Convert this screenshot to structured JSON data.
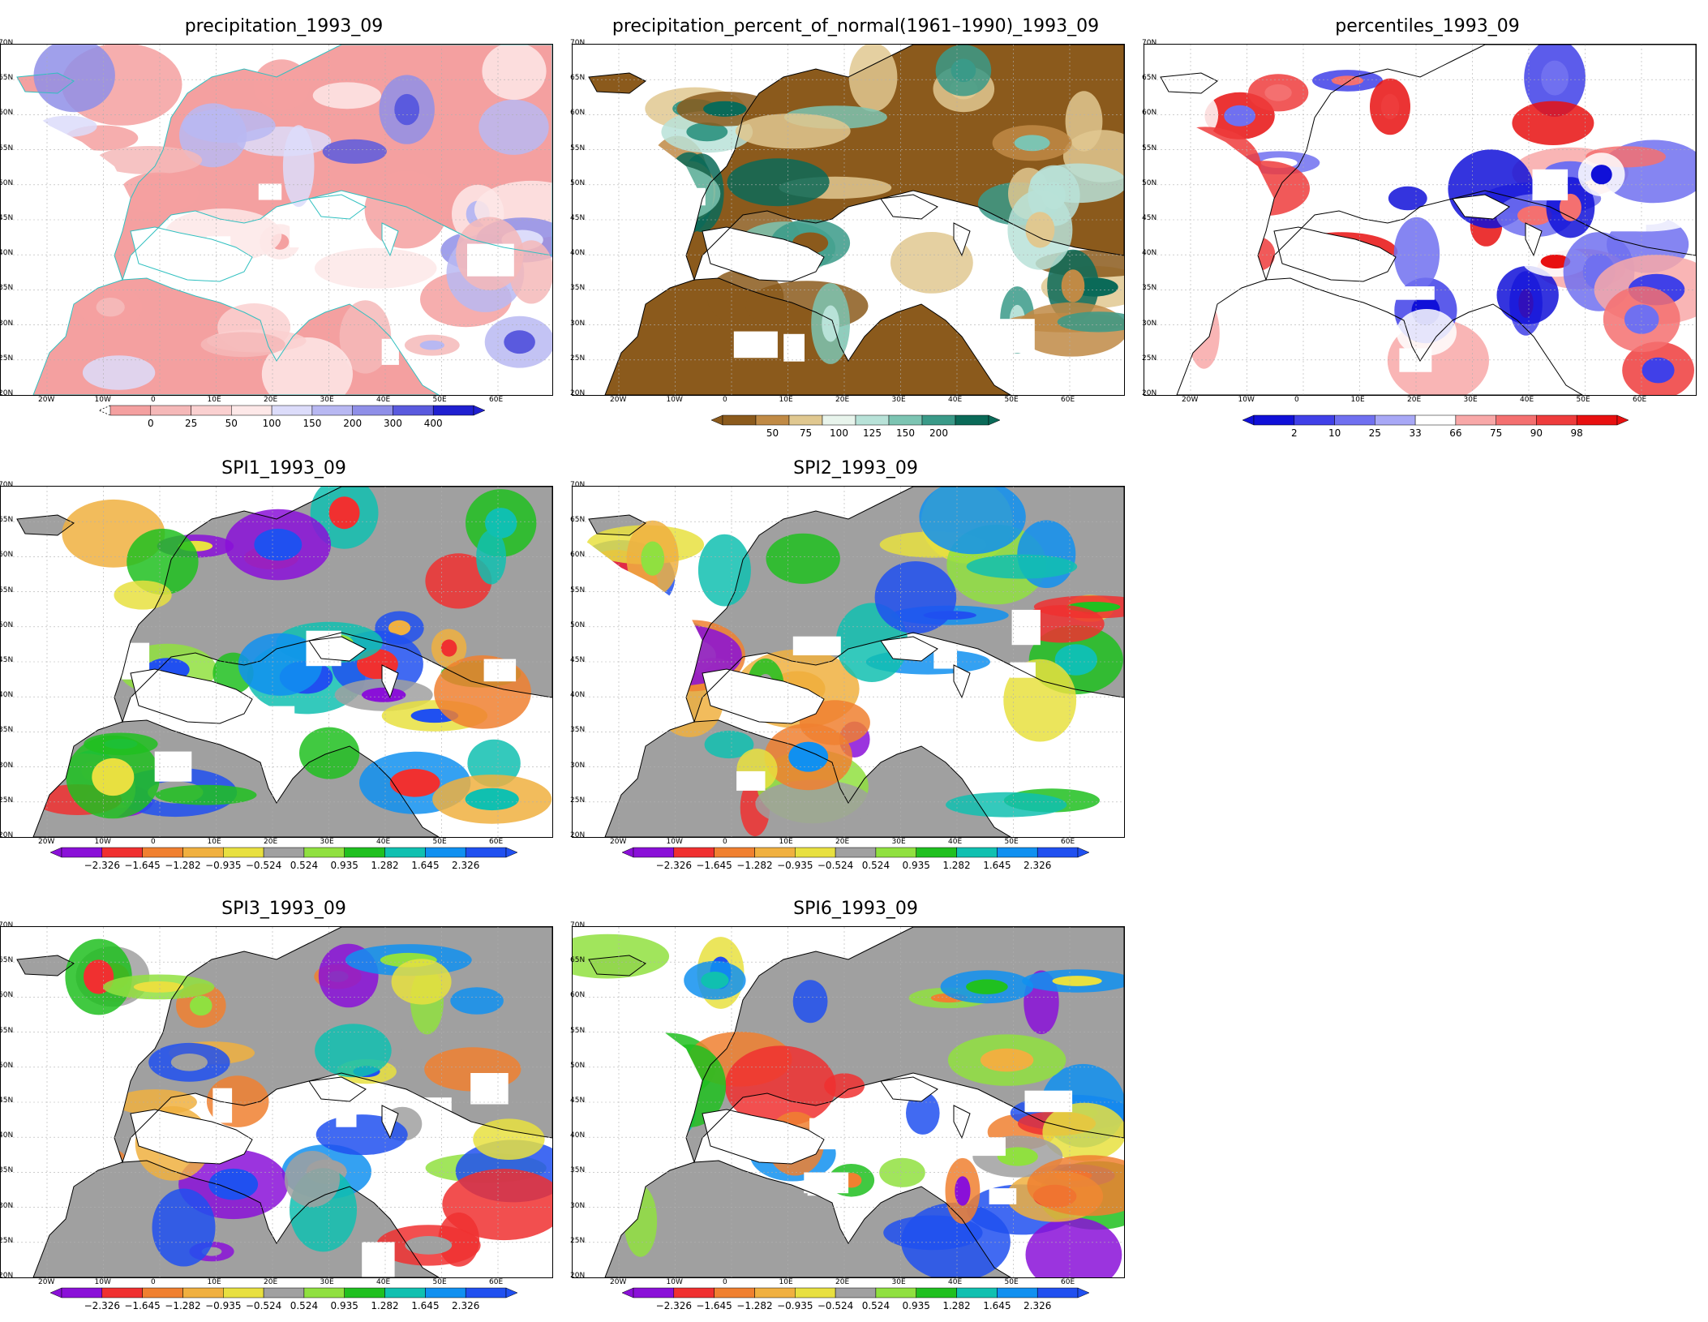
{
  "lat_labels": [
    "70N",
    "65N",
    "60N",
    "55N",
    "50N",
    "45N",
    "40N",
    "35N",
    "30N",
    "25N",
    "20N"
  ],
  "lon_labels": [
    "20W",
    "10W",
    "0",
    "10E",
    "20E",
    "30E",
    "40E",
    "50E",
    "60E"
  ],
  "panels": [
    {
      "id": "precipitation",
      "title": "precipitation_1993_09",
      "scheme": "precip",
      "legend": {
        "colors": [
          "#f4a0a0",
          "#f5b8b8",
          "#fad0d0",
          "#fde8e8",
          "#dcdcfa",
          "#b8b8f2",
          "#8f8fe8",
          "#5a5ade",
          "#2020d0"
        ],
        "labels": [
          "0",
          "25",
          "50",
          "100",
          "150",
          "200",
          "300",
          "400"
        ],
        "triangle_left": false,
        "triangle_right": true,
        "dashed_left": true
      }
    },
    {
      "id": "percent-of-normal",
      "title": "precipitation_percent_of_normal(1961–1990)_1993_09",
      "scheme": "percent",
      "legend": {
        "colors": [
          "#8b5a1c",
          "#c08a45",
          "#e0c890",
          "#e8f4ec",
          "#b8e2d8",
          "#7cc4b2",
          "#3a9a88",
          "#0a6a58"
        ],
        "labels": [
          "50",
          "75",
          "100",
          "125",
          "150",
          "200"
        ],
        "triangle_left": true,
        "triangle_right": true
      }
    },
    {
      "id": "percentiles",
      "title": "percentiles_1993_09",
      "scheme": "pctl",
      "legend": {
        "colors": [
          "#1010d8",
          "#4040e8",
          "#7070f0",
          "#a8a8f6",
          "#ffffff",
          "#f8a8a8",
          "#f47070",
          "#ee3c3c",
          "#e81010"
        ],
        "labels": [
          "2",
          "10",
          "25",
          "33",
          "66",
          "75",
          "90",
          "98"
        ],
        "triangle_left": true,
        "triangle_right": true
      }
    },
    {
      "id": "spi1",
      "title": "SPI1_1993_09",
      "scheme": "spi1"
    },
    {
      "id": "spi2",
      "title": "SPI2_1993_09",
      "scheme": "spi2"
    },
    {
      "id": "spi3",
      "title": "SPI3_1993_09",
      "scheme": "spi3"
    },
    {
      "id": "spi6",
      "title": "SPI6_1993_09",
      "scheme": "spi6"
    }
  ],
  "spi_legend": {
    "colors": [
      "#8a10d8",
      "#f03030",
      "#f08030",
      "#f0b040",
      "#e8e040",
      "#a0a0a0",
      "#90e040",
      "#20c020",
      "#10c0b0",
      "#1090f0",
      "#2050f0"
    ],
    "labels": [
      "−2.326",
      "−1.645",
      "−1.282",
      "−0.935",
      "−0.524",
      "0.524",
      "0.935",
      "1.282",
      "1.645",
      "2.326"
    ],
    "triangle_left": true,
    "triangle_right": true
  },
  "colors": {
    "spi_grey": "#a0a0a0",
    "grid": "#b0b0b0",
    "coast_precip": "#30c0c0",
    "coast_other": "#000000"
  }
}
